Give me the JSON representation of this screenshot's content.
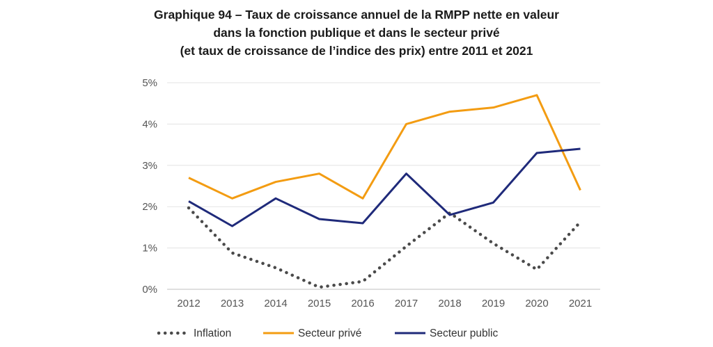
{
  "title_lines": [
    "Graphique 94 – Taux de croissance annuel de la RMPP nette en valeur",
    "dans la fonction publique et dans le secteur privé",
    "(et taux de croissance de l’indice des prix) entre 2011 et 2021"
  ],
  "chart_data": {
    "type": "line",
    "x": [
      "2012",
      "2013",
      "2014",
      "2015",
      "2016",
      "2017",
      "2018",
      "2019",
      "2020",
      "2021"
    ],
    "ylim": [
      0,
      5
    ],
    "y_ticks": [
      "0%",
      "1%",
      "2%",
      "3%",
      "4%",
      "5%"
    ],
    "grid": true,
    "legend_position": "bottom",
    "series": [
      {
        "name": "Inflation",
        "color": "#4a4a4a",
        "style": "dotted",
        "values": [
          1.97,
          0.88,
          0.52,
          0.05,
          0.19,
          1.04,
          1.85,
          1.11,
          0.48,
          1.63
        ]
      },
      {
        "name": "Secteur privé",
        "color": "#f39c12",
        "style": "solid",
        "values": [
          2.7,
          2.2,
          2.6,
          2.8,
          2.2,
          4.0,
          4.3,
          4.4,
          4.7,
          2.4
        ]
      },
      {
        "name": "Secteur public",
        "color": "#1f2a7a",
        "style": "solid",
        "values": [
          2.13,
          1.53,
          2.2,
          1.7,
          1.6,
          2.8,
          1.8,
          2.1,
          3.3,
          3.4
        ]
      }
    ]
  }
}
